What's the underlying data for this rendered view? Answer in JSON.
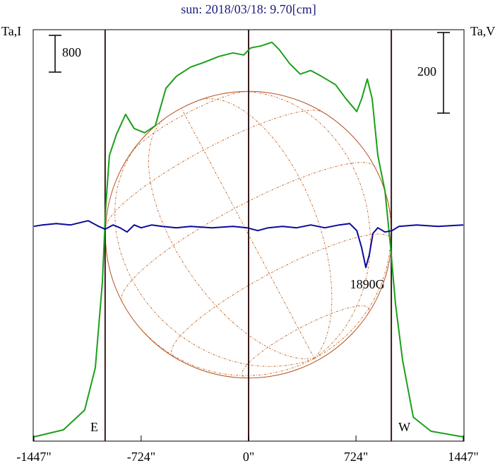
{
  "chart_data": {
    "type": "line",
    "title": "sun: 2018/03/18: 9.70[cm]",
    "ylabel": "Ta,I",
    "y2label": "Ta,V",
    "xlim": [
      -1447,
      1447
    ],
    "xticks": [
      {
        "value": -1447,
        "label": "-1447\""
      },
      {
        "value": -724,
        "label": "-724\""
      },
      {
        "value": 0,
        "label": "0\""
      },
      {
        "value": 724,
        "label": "724\""
      },
      {
        "value": 1447,
        "label": "1447\""
      }
    ],
    "ylim": [
      0,
      8950
    ],
    "y2lim": [
      -533,
      488
    ],
    "vlines": [
      -967,
      0,
      962
    ],
    "disk_radius": 965,
    "scale_bars": [
      {
        "value": 800,
        "axis": "y"
      },
      {
        "value": 200,
        "axis": "y2"
      }
    ],
    "annotations": [
      {
        "text": "E",
        "x": -1040
      },
      {
        "text": "W",
        "x": 1050
      },
      {
        "text": "1890G",
        "x": 800
      }
    ],
    "series": [
      {
        "name": "Ta,I",
        "color": "#1aa01a",
        "x": [
          -1447,
          -1248,
          -1105,
          -1033,
          -986,
          -962,
          -938,
          -890,
          -829,
          -771,
          -700,
          -629,
          -557,
          -486,
          -390,
          -295,
          -200,
          -105,
          -33,
          14,
          86,
          157,
          205,
          276,
          348,
          419,
          490,
          586,
          657,
          729,
          762,
          800,
          833,
          871,
          919,
          957,
          990,
          1038,
          1110,
          1229,
          1447
        ],
        "values": [
          92,
          246,
          677,
          1600,
          3446,
          5138,
          6215,
          6677,
          7108,
          6800,
          6708,
          6862,
          7677,
          7938,
          8138,
          8246,
          8369,
          8446,
          8400,
          8554,
          8600,
          8677,
          8523,
          8215,
          7985,
          8062,
          7938,
          7754,
          7446,
          7169,
          7446,
          7877,
          7446,
          6215,
          5446,
          4215,
          2985,
          1754,
          523,
          215,
          92
        ]
      },
      {
        "name": "Ta,V",
        "color": "#0a0a9a",
        "axis": "y2",
        "x": [
          -1447,
          -1390,
          -1295,
          -1200,
          -1081,
          -1010,
          -967,
          -914,
          -867,
          -819,
          -771,
          -724,
          -652,
          -581,
          -486,
          -390,
          -248,
          -105,
          -10,
          62,
          133,
          229,
          324,
          419,
          514,
          610,
          681,
          729,
          762,
          790,
          814,
          838,
          871,
          919,
          967,
          1014,
          1133,
          1276,
          1447
        ],
        "values": [
          0,
          3.5,
          7,
          3.5,
          14,
          0,
          -7,
          3.5,
          -3.5,
          -14,
          3.5,
          -3.5,
          3.5,
          0,
          -3.5,
          0,
          -3.5,
          0,
          -3.5,
          -10.5,
          -3.5,
          0,
          -3.5,
          3.5,
          -3.5,
          3.5,
          7,
          -10.5,
          -53,
          -102,
          -70,
          -17.5,
          -3.5,
          -14,
          -10.5,
          0,
          3.5,
          0,
          3.5
        ]
      }
    ]
  }
}
